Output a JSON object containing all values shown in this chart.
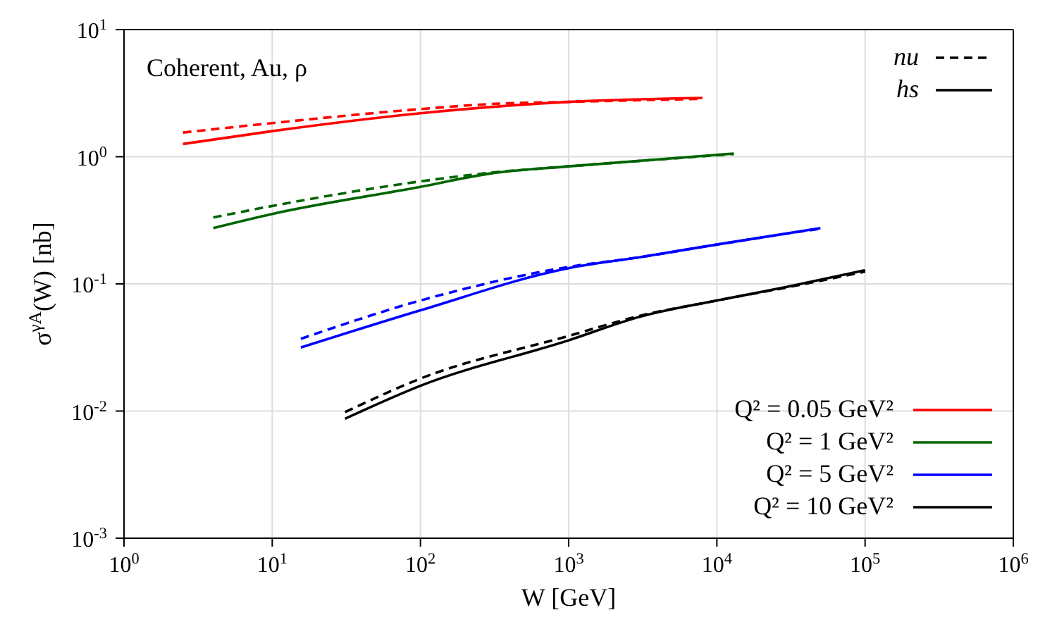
{
  "chart_data": {
    "type": "line",
    "xlabel": "W [GeV]",
    "ylabel": "σ$^{γA}$(W) [nb]",
    "log": "xy",
    "grid": true,
    "legend": "bottom right",
    "annotations": [
      "Coherent, Au, ρ",
      "nu",
      "hs"
    ],
    "xlim": [
      1,
      1000000
    ],
    "ylim": [
      0.001,
      10
    ],
    "xticks": [
      {
        "value": 1,
        "label": "10$^{0}$"
      },
      {
        "value": 10,
        "label": "10$^{1}$"
      },
      {
        "value": 100,
        "label": "10$^{2}$"
      },
      {
        "value": 1000,
        "label": "10$^{3}$"
      },
      {
        "value": 10000,
        "label": "10$^{4}$"
      },
      {
        "value": 100000,
        "label": "10$^{5}$"
      },
      {
        "value": 1000000,
        "label": "10$^{6}$"
      }
    ],
    "yticks": [
      {
        "value": 0.001,
        "label": "10$^{-3}$"
      },
      {
        "value": 0.01,
        "label": "10$^{-2}$"
      },
      {
        "value": 0.1,
        "label": "10$^{-1}$"
      },
      {
        "value": 1,
        "label": "10$^{0}$"
      },
      {
        "value": 10,
        "label": "10$^{1}$"
      }
    ],
    "series": [
      {
        "color": "#ff0000",
        "line_style": "dashed",
        "x": [
          2.5,
          10,
          100,
          300,
          1000,
          8000
        ],
        "values": [
          1.55,
          1.84,
          2.37,
          2.6,
          2.7,
          2.85
        ]
      },
      {
        "color": "#006400",
        "line_style": "dashed",
        "x": [
          4,
          10,
          100,
          300,
          1000,
          13000
        ],
        "values": [
          0.333,
          0.41,
          0.64,
          0.75,
          0.84,
          1.05
        ]
      },
      {
        "color": "#0000ff",
        "line_style": "dashed",
        "x": [
          15.6,
          100,
          1000,
          3000,
          10000,
          50000
        ],
        "values": [
          0.037,
          0.074,
          0.136,
          0.162,
          0.204,
          0.272
        ]
      },
      {
        "color": "#000000",
        "line_style": "dashed",
        "x": [
          31,
          100,
          1000,
          3000,
          10000,
          30000,
          100000
        ],
        "values": [
          0.0098,
          0.018,
          0.039,
          0.056,
          0.074,
          0.094,
          0.125
        ]
      },
      {
        "name": "Q² = 0.05 GeV²",
        "color": "#ff0000",
        "line_style": "solid",
        "x": [
          2.5,
          10,
          100,
          1000,
          8000
        ],
        "values": [
          1.26,
          1.59,
          2.2,
          2.7,
          2.9
        ]
      },
      {
        "name": "Q² = 1 GeV²",
        "color": "#006400",
        "line_style": "solid",
        "x": [
          4,
          10,
          100,
          300,
          1000,
          13000
        ],
        "values": [
          0.275,
          0.355,
          0.58,
          0.74,
          0.84,
          1.06
        ]
      },
      {
        "name": "Q² = 5 GeV²",
        "color": "#0000ff",
        "line_style": "solid",
        "x": [
          15.6,
          100,
          1000,
          3000,
          10000,
          50000
        ],
        "values": [
          0.0316,
          0.062,
          0.133,
          0.162,
          0.204,
          0.275
        ]
      },
      {
        "name": "Q² = 10 GeV²",
        "color": "#000000",
        "line_style": "solid",
        "x": [
          31,
          100,
          1000,
          3000,
          10000,
          30000,
          100000
        ],
        "values": [
          0.0087,
          0.0158,
          0.036,
          0.055,
          0.074,
          0.095,
          0.128
        ]
      }
    ]
  }
}
